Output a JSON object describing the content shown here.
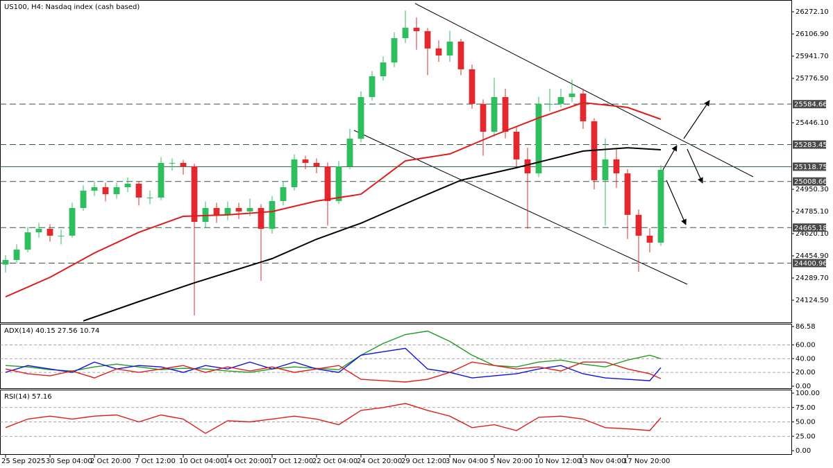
{
  "chart_data": [
    {
      "type": "candlestick",
      "title": "US100, H4:  Nasdaq index (cash based)",
      "x": [
        0,
        1,
        2,
        3,
        4,
        5,
        6,
        7,
        8,
        9,
        10,
        11,
        12,
        13,
        14,
        15,
        16,
        17,
        18,
        19,
        20,
        21,
        22,
        23,
        24,
        25,
        26,
        27,
        28,
        29,
        30,
        31,
        32,
        33,
        34,
        35,
        36,
        37,
        38,
        39,
        40,
        41,
        42,
        43,
        44,
        45,
        46,
        47,
        48,
        49,
        50,
        51,
        52,
        53,
        54,
        55,
        56,
        57,
        58,
        59
      ],
      "open": [
        24390,
        24424,
        24501,
        24630,
        24656,
        24605,
        24605,
        24811,
        24940,
        24966,
        24914,
        24966,
        24992,
        24889,
        24889,
        25147,
        25147,
        25121,
        24708,
        24811,
        24760,
        24811,
        24785,
        24811,
        24656,
        24863,
        24966,
        25173,
        25147,
        25121,
        24863,
        25121,
        25327,
        25637,
        25792,
        25895,
        26076,
        26153,
        26128,
        25999,
        25947,
        26050,
        25844,
        25586,
        25379,
        25637,
        25379,
        25173,
        25069,
        25586,
        25586,
        25637,
        25663,
        25457,
        25018,
        25173,
        25069,
        24760,
        24605,
        24553
      ],
      "high": [
        24460,
        24540,
        24670,
        24700,
        24690,
        24650,
        24850,
        24980,
        25010,
        25000,
        25000,
        25040,
        25010,
        24940,
        25190,
        25180,
        25170,
        25140,
        24860,
        24850,
        24860,
        24850,
        24880,
        24840,
        24900,
        25010,
        25210,
        25200,
        25180,
        25150,
        25160,
        25400,
        25680,
        25830,
        25940,
        26120,
        26282,
        26230,
        26150,
        26060,
        26130,
        26070,
        25880,
        25620,
        25780,
        25700,
        25420,
        25260,
        25640,
        25700,
        25700,
        25766,
        25700,
        25480,
        25330,
        25250,
        25100,
        24800,
        24660,
        25130
      ],
      "low": [
        24330,
        24400,
        24480,
        24590,
        24560,
        24540,
        24590,
        24790,
        24900,
        24860,
        24880,
        24930,
        24830,
        24840,
        24870,
        25090,
        25060,
        24011,
        24660,
        24700,
        24720,
        24730,
        24750,
        24269,
        24620,
        24830,
        24940,
        25100,
        25070,
        24680,
        24840,
        25100,
        25300,
        25610,
        25760,
        25860,
        26040,
        25990,
        25800,
        25900,
        25900,
        25800,
        25550,
        25200,
        25340,
        25330,
        25120,
        24656,
        25040,
        25530,
        25560,
        25600,
        25400,
        24950,
        24680,
        24960,
        24580,
        24336,
        24480,
        24530
      ],
      "close": [
        24424,
        24501,
        24630,
        24656,
        24605,
        24605,
        24811,
        24940,
        24966,
        24914,
        24966,
        24992,
        24889,
        24889,
        25147,
        25147,
        25121,
        24708,
        24811,
        24760,
        24811,
        24785,
        24811,
        24656,
        24863,
        24966,
        25173,
        25147,
        25121,
        24863,
        25121,
        25327,
        25637,
        25792,
        25895,
        26076,
        26153,
        26128,
        25999,
        25947,
        26050,
        25844,
        25586,
        25379,
        25637,
        25379,
        25173,
        25069,
        25586,
        25586,
        25637,
        25663,
        25457,
        25018,
        25173,
        25069,
        24760,
        24605,
        24553,
        25095
      ],
      "up_color": "#2ebd5f",
      "down_color": "#e0282e",
      "series": [
        {
          "color": "#e01b1b",
          "x": [
            0,
            4,
            8,
            12,
            16,
            20,
            24,
            28,
            32,
            36,
            40,
            44,
            48,
            52,
            56,
            59
          ],
          "values": [
            24150,
            24295,
            24476,
            24630,
            24749,
            24760,
            24785,
            24863,
            24914,
            25162,
            25214,
            25353,
            25482,
            25596,
            25560,
            25472
          ]
        },
        {
          "color": "#000000",
          "x": [
            7,
            12,
            17,
            24,
            28,
            32,
            37,
            41,
            46,
            52,
            56,
            59
          ],
          "values": [
            23970,
            24114,
            24254,
            24434,
            24579,
            24698,
            24878,
            25018,
            25111,
            25235,
            25260,
            25245
          ]
        }
      ],
      "levels": [
        {
          "value": 25584.66,
          "style": "dashed"
        },
        {
          "value": 25283.45,
          "style": "dashed"
        },
        {
          "value": 25118.75,
          "style": "solid"
        },
        {
          "value": 25008.66,
          "style": "dashed"
        },
        {
          "value": 24665.18,
          "style": "dashed"
        },
        {
          "value": 24400.96,
          "style": "dashed"
        }
      ],
      "xlim": [
        -0.5,
        70.75
      ],
      "ylim": [
        23959.3,
        26359.9
      ],
      "yticks": [
        {
          "value": 26272.1,
          "label": "26272.10"
        },
        {
          "value": 26106.9,
          "label": "26106.90"
        },
        {
          "value": 25941.7,
          "label": "25941.70"
        },
        {
          "value": 25776.5,
          "label": "25776.50"
        },
        {
          "value": 25446.1,
          "label": "25446.10"
        },
        {
          "value": 24950.3,
          "label": "24950.30"
        },
        {
          "value": 24785.1,
          "label": "24785.10"
        },
        {
          "value": 24620.1,
          "label": "24620.10"
        },
        {
          "value": 24454.9,
          "label": "24454.90"
        },
        {
          "value": 24289.7,
          "label": "24289.70"
        },
        {
          "value": 24124.5,
          "label": "24124.50"
        }
      ],
      "xticks": [
        {
          "value": 0,
          "label": "25 Sep 2025"
        },
        {
          "value": 4,
          "label": "30 Sep 04:00"
        },
        {
          "value": 8,
          "label": "2 Oct 20:00"
        },
        {
          "value": 12,
          "label": "7 Oct 12:00"
        },
        {
          "value": 16,
          "label": "10 Oct 04:00"
        },
        {
          "value": 20,
          "label": "14 Oct 20:00"
        },
        {
          "value": 24,
          "label": "17 Oct 12:00"
        },
        {
          "value": 28,
          "label": "22 Oct 04:00"
        },
        {
          "value": 32,
          "label": "24 Oct 20:00"
        },
        {
          "value": 36,
          "label": "29 Oct 12:00"
        },
        {
          "value": 40,
          "label": "3 Nov 04:00"
        },
        {
          "value": 44,
          "label": "5 Nov 20:00"
        },
        {
          "value": 48,
          "label": "10 Nov 12:00"
        },
        {
          "value": 52,
          "label": "13 Nov 04:00"
        },
        {
          "value": 56,
          "label": "17 Nov 20:00"
        }
      ]
    },
    {
      "type": "line",
      "title": "ADX(14) 40.15 27.56 10.74",
      "xlim": [
        -0.5,
        70.75
      ],
      "ylim": [
        0,
        86.58
      ],
      "yticks": [
        86.58,
        {
          "value": 60,
          "label": "60.00"
        },
        {
          "value": 40,
          "label": "40.00"
        },
        {
          "value": 20,
          "label": "20.00"
        },
        {
          "value": 0,
          "label": "0.00"
        }
      ],
      "grid": "dashed",
      "series": [
        {
          "color": "#1f9a1f",
          "x": [
            0,
            2,
            4,
            6,
            8,
            10,
            12,
            14,
            16,
            18,
            20,
            22,
            24,
            26,
            28,
            30,
            32,
            34,
            36,
            38,
            40,
            42,
            44,
            46,
            48,
            50,
            52,
            54,
            56,
            58,
            59
          ],
          "values": [
            30,
            28,
            24,
            22,
            28,
            32,
            28,
            24,
            26,
            25,
            22,
            20,
            25,
            28,
            26,
            24,
            45,
            62,
            75,
            80,
            65,
            45,
            30,
            28,
            35,
            38,
            32,
            28,
            38,
            45,
            40
          ]
        },
        {
          "color": "#1010e0",
          "x": [
            0,
            2,
            4,
            6,
            8,
            10,
            12,
            14,
            16,
            18,
            20,
            22,
            24,
            26,
            28,
            30,
            32,
            34,
            36,
            38,
            40,
            42,
            44,
            46,
            48,
            50,
            52,
            54,
            56,
            58,
            59
          ],
          "values": [
            20,
            30,
            25,
            20,
            35,
            25,
            30,
            28,
            20,
            30,
            25,
            35,
            25,
            35,
            25,
            20,
            45,
            50,
            55,
            25,
            20,
            12,
            15,
            18,
            25,
            30,
            18,
            12,
            10,
            8,
            27
          ]
        },
        {
          "color": "#e01b1b",
          "x": [
            0,
            2,
            4,
            6,
            8,
            10,
            12,
            14,
            16,
            18,
            20,
            22,
            24,
            26,
            28,
            30,
            32,
            34,
            36,
            38,
            40,
            42,
            44,
            46,
            48,
            50,
            52,
            54,
            56,
            58,
            59
          ],
          "values": [
            25,
            18,
            15,
            22,
            12,
            25,
            20,
            25,
            30,
            20,
            28,
            22,
            28,
            20,
            25,
            30,
            10,
            8,
            6,
            10,
            20,
            35,
            30,
            25,
            28,
            22,
            35,
            35,
            25,
            18,
            11
          ]
        }
      ]
    },
    {
      "type": "line",
      "title": "RSI(14) 57.16",
      "xlim": [
        -0.5,
        70.75
      ],
      "ylim": [
        0,
        100
      ],
      "yticks": [
        {
          "value": 100,
          "label": "100.00"
        },
        {
          "value": 75,
          "label": "75.00"
        },
        {
          "value": 50,
          "label": "50.00"
        },
        {
          "value": 25,
          "label": "25.00"
        },
        {
          "value": 0,
          "label": "0.00"
        }
      ],
      "grid": "dashed",
      "series": [
        {
          "color": "#e01b1b",
          "x": [
            0,
            2,
            4,
            6,
            8,
            10,
            12,
            14,
            16,
            18,
            20,
            22,
            24,
            26,
            28,
            30,
            32,
            34,
            36,
            38,
            40,
            42,
            44,
            46,
            48,
            50,
            52,
            54,
            56,
            58,
            59
          ],
          "values": [
            40,
            55,
            60,
            55,
            60,
            62,
            50,
            62,
            55,
            30,
            52,
            50,
            55,
            60,
            55,
            45,
            70,
            75,
            82,
            70,
            60,
            40,
            45,
            35,
            58,
            60,
            55,
            40,
            38,
            35,
            57.16
          ]
        }
      ]
    }
  ]
}
